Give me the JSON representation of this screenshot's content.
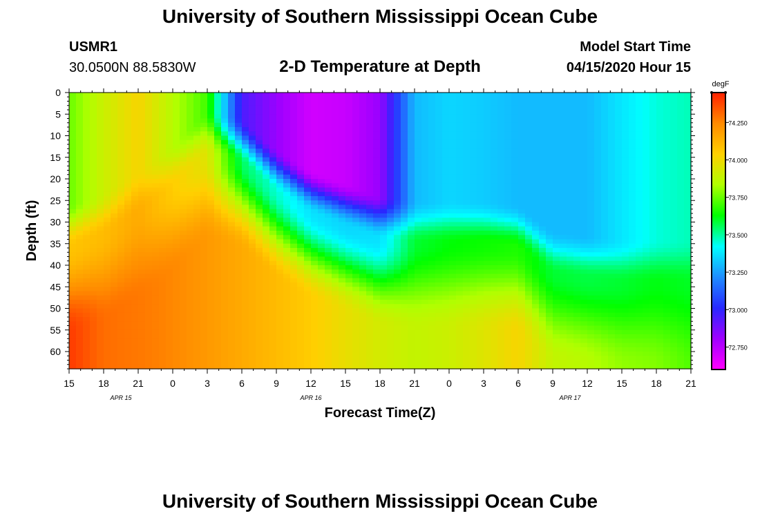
{
  "header": {
    "title_top": "University of Southern Mississippi Ocean Cube",
    "title_bottom": "University of Southern Mississippi Ocean Cube",
    "station_id": "USMR1",
    "station_coords": "30.0500N 88.5830W",
    "plot_title": "2-D Temperature at Depth",
    "model_start_label": "Model Start Time",
    "model_start_value": "04/15/2020 Hour 15"
  },
  "chart_data": {
    "type": "heatmap",
    "title": "2-D Temperature at Depth",
    "xlabel": "Forecast Time(Z)",
    "ylabel": "Depth (ft)",
    "colorbar_unit": "degF",
    "x_tick_labels": [
      "15",
      "18",
      "21",
      "0",
      "3",
      "6",
      "9",
      "12",
      "15",
      "18",
      "21",
      "0",
      "3",
      "6",
      "9",
      "12",
      "15",
      "18",
      "21"
    ],
    "date_labels": [
      {
        "text": "APR 15",
        "tick_index": 1.5
      },
      {
        "text": "APR 16",
        "tick_index": 7
      },
      {
        "text": "APR 17",
        "tick_index": 14.5
      }
    ],
    "x_range_hours": [
      0,
      54
    ],
    "y_ticks": [
      0,
      5,
      10,
      15,
      20,
      25,
      30,
      35,
      40,
      45,
      50,
      55,
      60
    ],
    "ylim": [
      0,
      64
    ],
    "colorbar_ticks": [
      "74.250",
      "74.000",
      "73.750",
      "73.500",
      "73.250",
      "73.000",
      "72.750"
    ],
    "colorbar_range": [
      72.6,
      74.45
    ],
    "colorbar_colors": [
      "#ff00ff",
      "#a000ff",
      "#2828ff",
      "#1e8cff",
      "#00ffff",
      "#00ff00",
      "#b0ff00",
      "#ffd000",
      "#ff8a00",
      "#ff2000"
    ],
    "thermocline_depth_ft": [
      36,
      33,
      28,
      22,
      14,
      16,
      23,
      28,
      31,
      34,
      35,
      35,
      35,
      36,
      42,
      43,
      44,
      44,
      44
    ],
    "surface_temp_f": [
      73.75,
      73.9,
      74.02,
      73.85,
      73.7,
      72.95,
      72.82,
      72.7,
      72.72,
      72.82,
      73.3,
      73.35,
      73.33,
      73.3,
      73.3,
      73.3,
      73.38,
      73.45,
      73.48
    ],
    "bottom_temp_f": [
      74.4,
      74.3,
      74.28,
      74.25,
      74.2,
      74.15,
      74.1,
      74.05,
      73.98,
      73.92,
      73.88,
      73.9,
      73.95,
      74.02,
      73.88,
      73.85,
      73.8,
      73.78,
      73.72
    ]
  }
}
